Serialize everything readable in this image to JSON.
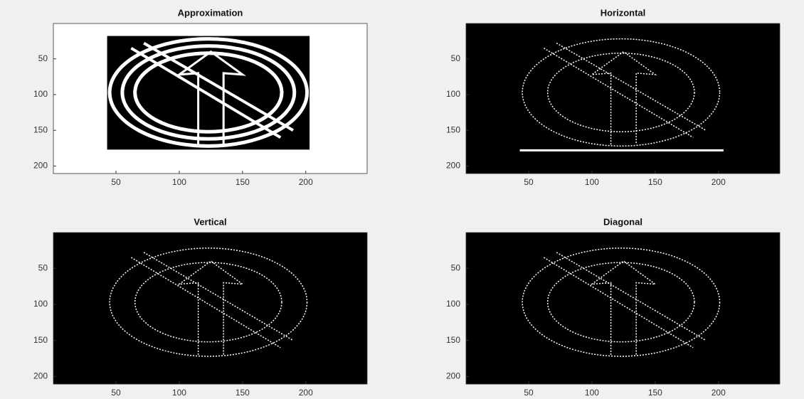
{
  "chart_data": [
    {
      "type": "image",
      "title": "Approximation",
      "xlim": [
        0.5,
        248.5
      ],
      "ylim": [
        0.5,
        210.5
      ],
      "y_reversed": true,
      "xticks": [
        50,
        100,
        150,
        200
      ],
      "yticks": [
        50,
        100,
        150,
        200
      ]
    },
    {
      "type": "image",
      "title": "Horizontal",
      "xlim": [
        0.5,
        248.5
      ],
      "ylim": [
        0.5,
        210.5
      ],
      "y_reversed": true,
      "xticks": [
        50,
        100,
        150,
        200
      ],
      "yticks": [
        50,
        100,
        150,
        200
      ]
    },
    {
      "type": "image",
      "title": "Vertical",
      "xlim": [
        0.5,
        248.5
      ],
      "ylim": [
        0.5,
        210.5
      ],
      "y_reversed": true,
      "xticks": [
        50,
        100,
        150,
        200
      ],
      "yticks": [
        50,
        100,
        150,
        200
      ]
    },
    {
      "type": "image",
      "title": "Diagonal",
      "xlim": [
        0.5,
        248.5
      ],
      "ylim": [
        0.5,
        210.5
      ],
      "y_reversed": true,
      "xticks": [
        50,
        100,
        150,
        200
      ],
      "yticks": [
        50,
        100,
        150,
        200
      ]
    }
  ]
}
